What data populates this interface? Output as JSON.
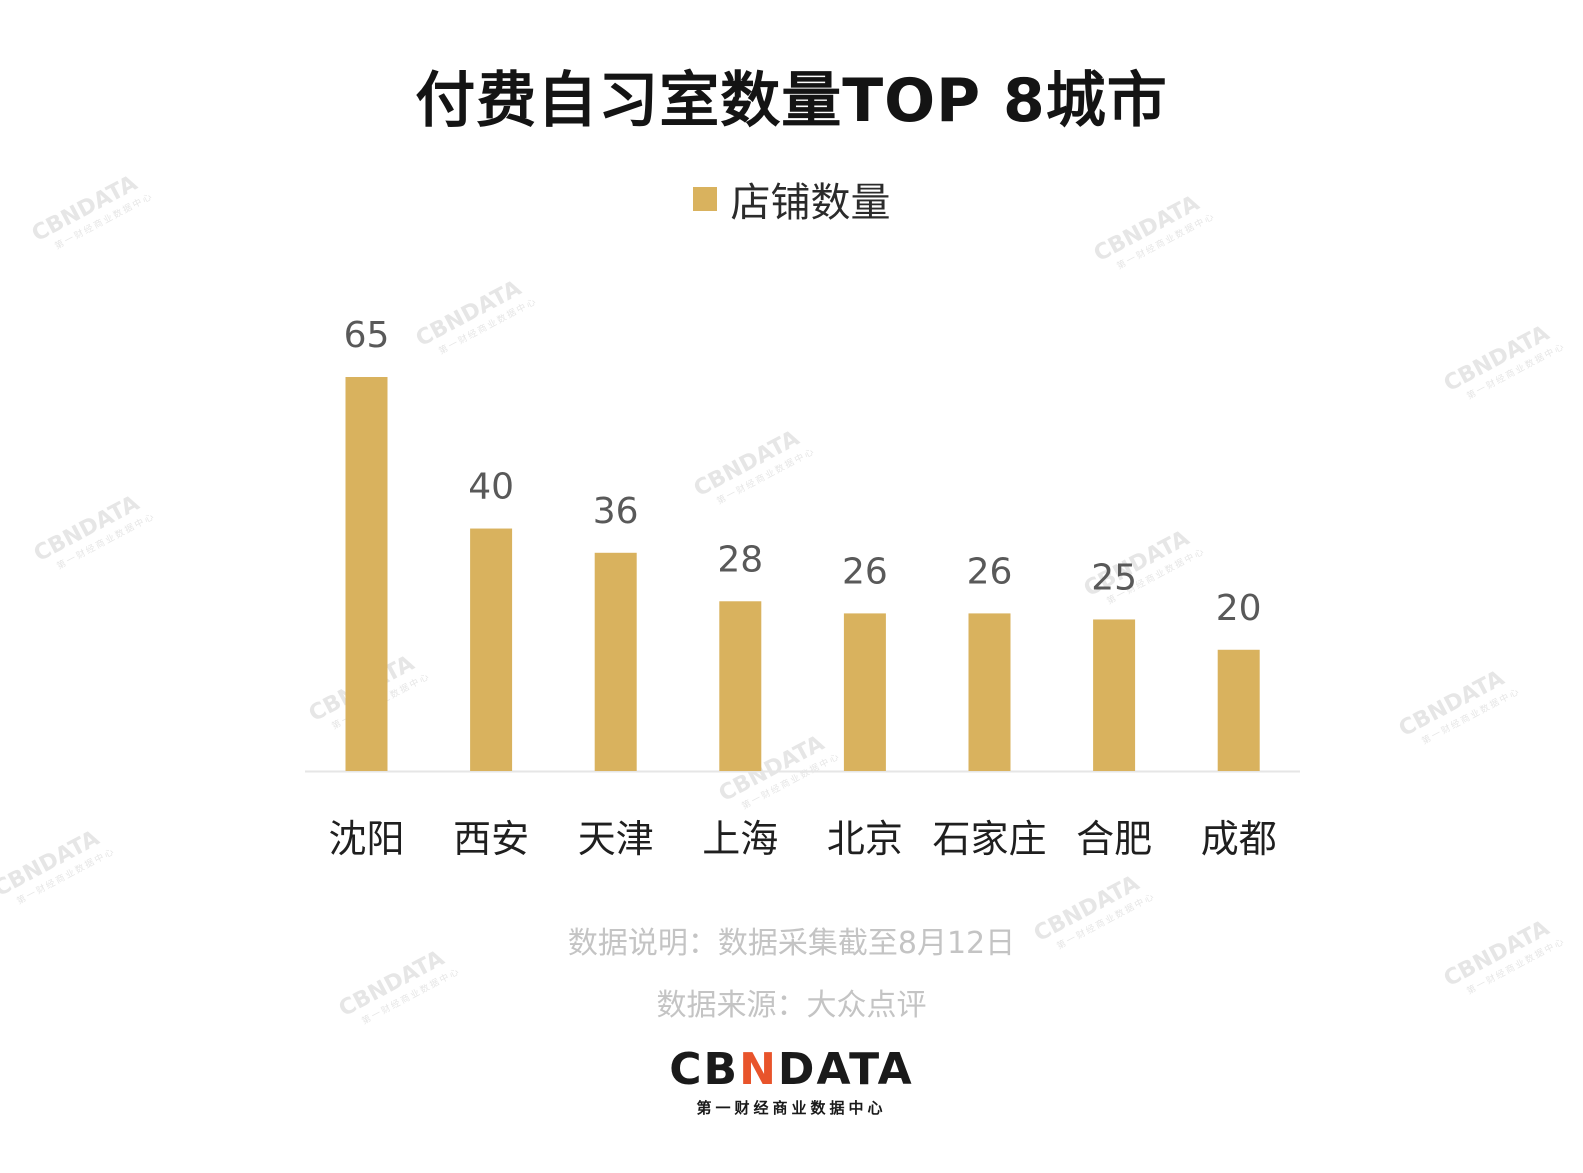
{
  "title": "付费自习室数量TOP 8城市",
  "legend": {
    "label": "店铺数量"
  },
  "colors": {
    "bar": "#D9B25E",
    "axis": "#E6E6E6",
    "value_label": "#595959",
    "category_label": "#1f1f1f"
  },
  "chart_data": {
    "type": "bar",
    "title": "付费自习室数量TOP 8城市",
    "categories": [
      "沈阳",
      "西安",
      "天津",
      "上海",
      "北京",
      "石家庄",
      "合肥",
      "成都"
    ],
    "series": [
      {
        "name": "店铺数量",
        "values": [
          65,
          40,
          36,
          28,
          26,
          26,
          25,
          20
        ]
      }
    ],
    "xlabel": "",
    "ylabel": "",
    "ylim": [
      0,
      70
    ],
    "grid": false,
    "legend_position": "top"
  },
  "notes": {
    "data_note": "数据说明：数据采集截至8月12日",
    "source": "数据来源：大众点评"
  },
  "logo": {
    "main_left": "CB",
    "main_x": "N",
    "main_right": "DATA",
    "sub": "第一财经商业数据中心"
  },
  "watermark": {
    "main": "CBNDATA",
    "sub": "第一财经商业数据中心"
  }
}
